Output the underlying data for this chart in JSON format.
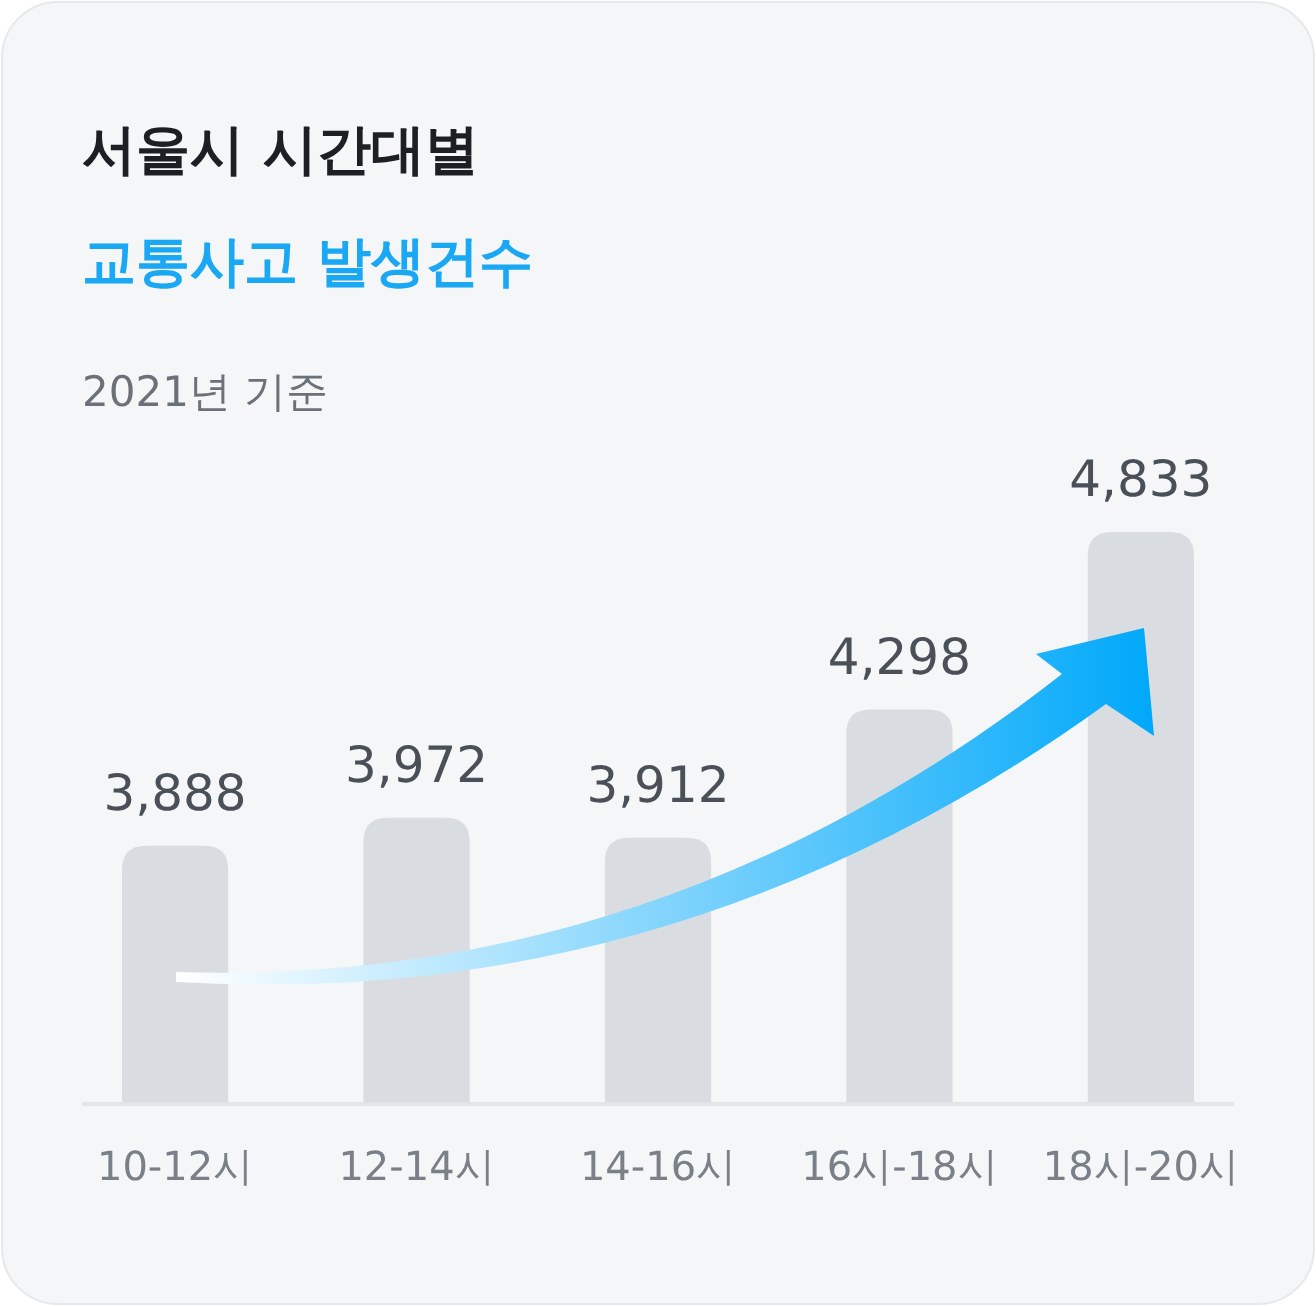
{
  "chart_data": {
    "type": "bar",
    "title": "서울시 시간대별",
    "subtitle": "교통사고 발생건수",
    "annotations": [
      "2021년 기준"
    ],
    "categories": [
      "10-12시",
      "12-14시",
      "14-16시",
      "16시-18시",
      "18시-20시"
    ],
    "values": [
      3888,
      3972,
      3912,
      4298,
      4833
    ],
    "value_labels": [
      "3,888",
      "3,972",
      "3,912",
      "4,298",
      "4,833"
    ],
    "color": "#d9dde1",
    "ylim": [
      3110,
      4833
    ],
    "tick_labels": "x"
  }
}
